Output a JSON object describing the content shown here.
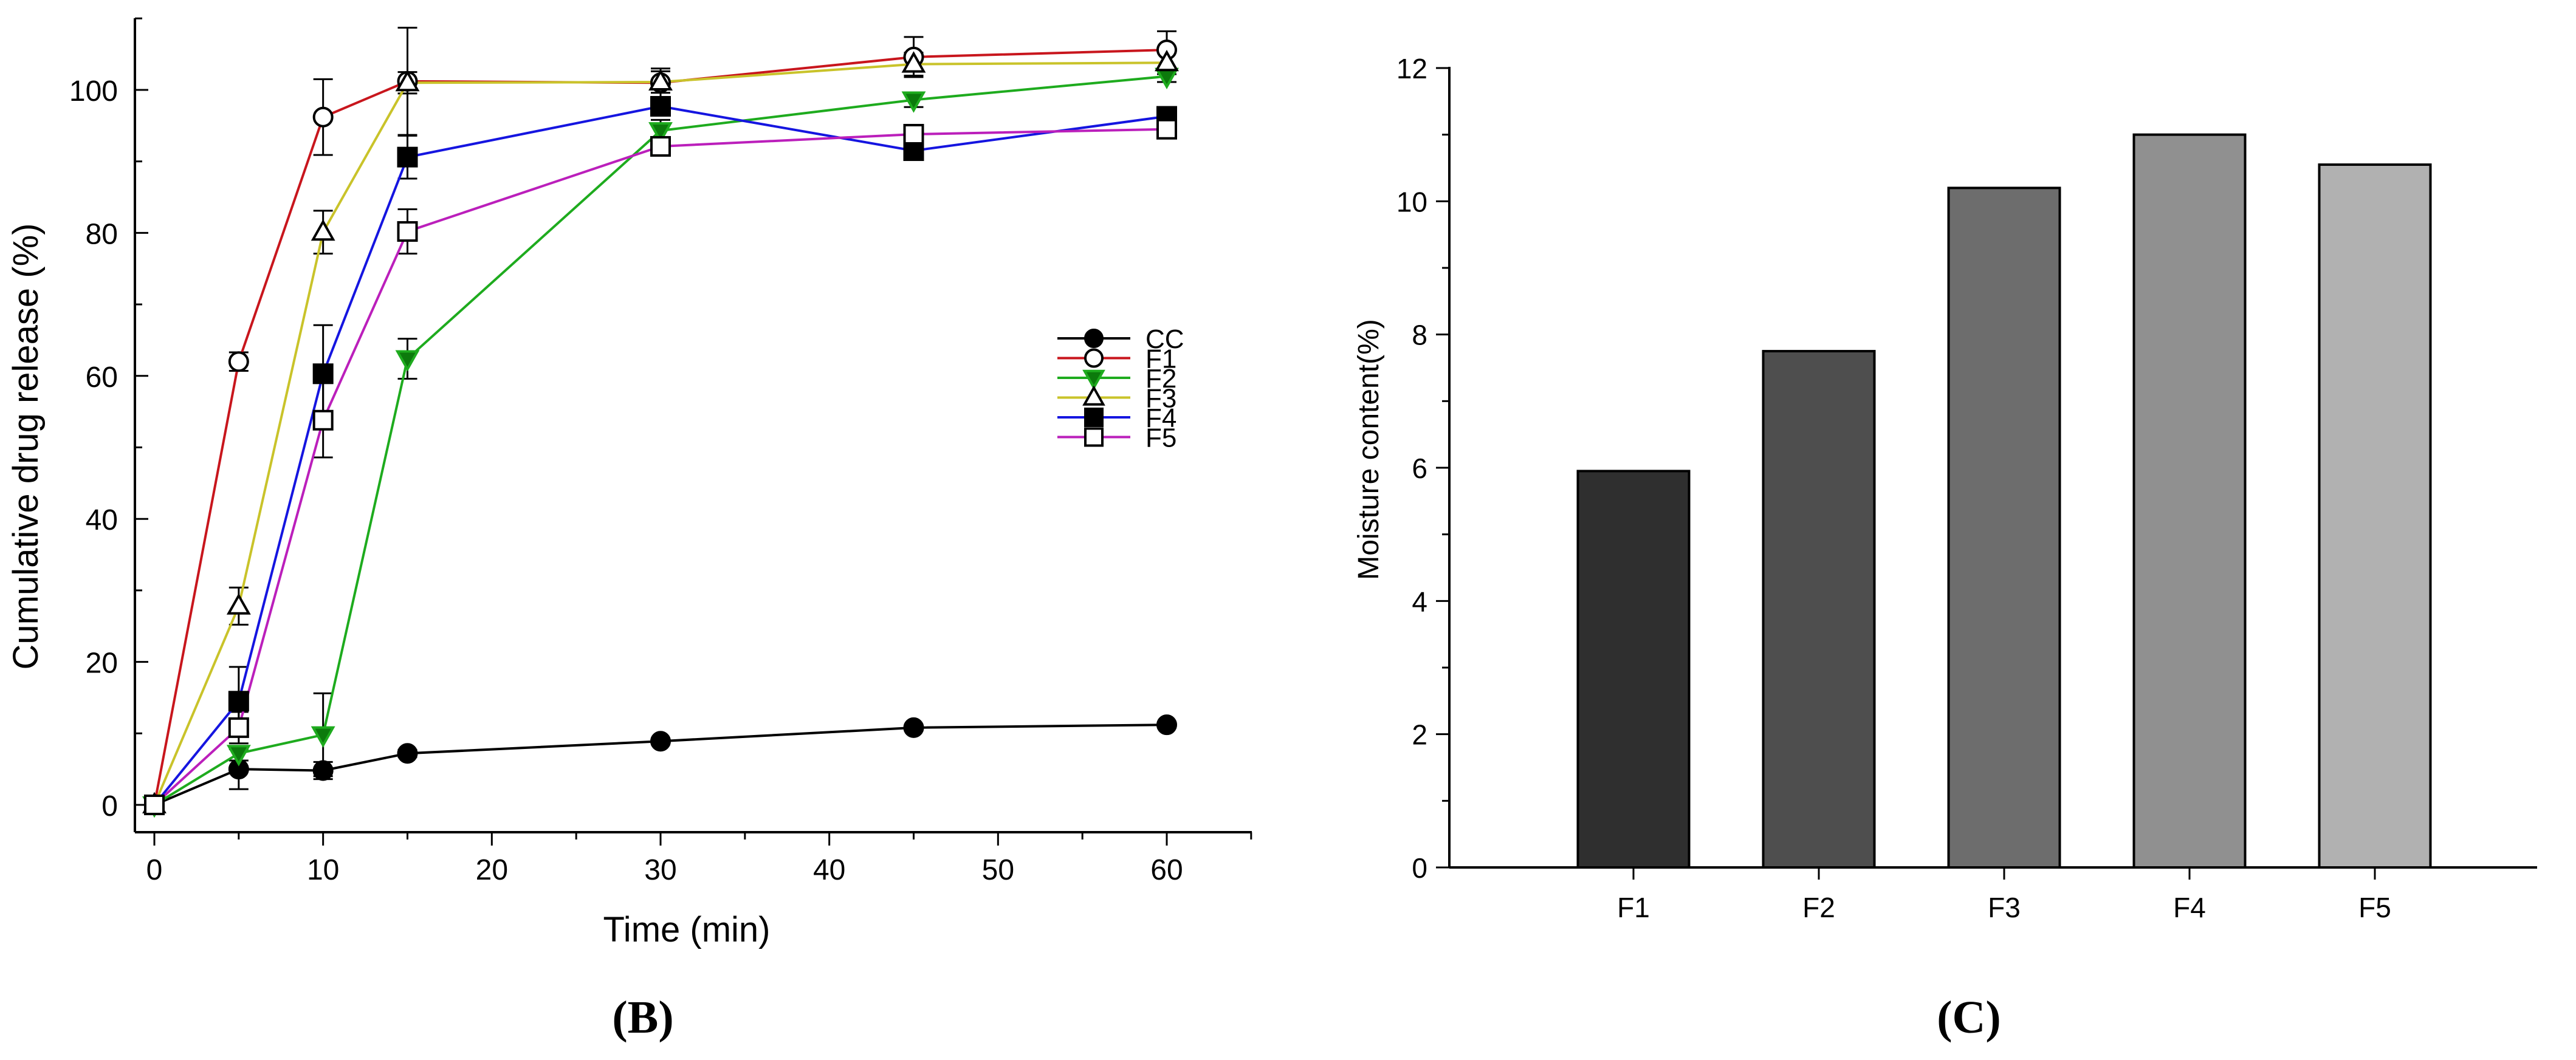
{
  "chart_data": [
    {
      "type": "line",
      "panel_label": "(B)",
      "title": "",
      "xlabel": "Time (min)",
      "ylabel": "Cumulative drug release (%)",
      "xlim": [
        0,
        65
      ],
      "ylim": [
        0,
        110
      ],
      "xticks": [
        "0",
        "10",
        "20",
        "30",
        "40",
        "50",
        "60"
      ],
      "yticks": [
        "0",
        "20",
        "40",
        "60",
        "80",
        "100"
      ],
      "x": [
        0,
        5,
        10,
        15,
        30,
        45,
        60
      ],
      "legend_position": "center-right",
      "series": [
        {
          "name": "CC",
          "color": "#000000",
          "marker": "circle",
          "filled": true,
          "values": [
            0,
            5,
            4.8,
            7.2,
            8.9,
            10.8,
            11.2
          ],
          "errors": [
            0,
            2.8,
            1.2,
            0.5,
            0.4,
            0.4,
            0.4
          ]
        },
        {
          "name": "F1",
          "color": "#c8161d",
          "marker": "circle",
          "filled": false,
          "values": [
            0,
            62,
            96.2,
            101.2,
            101,
            104.6,
            105.6
          ],
          "errors": [
            0,
            1.3,
            5.3,
            7.5,
            2.0,
            2.8,
            2.6
          ]
        },
        {
          "name": "F2",
          "color": "#1eab1e",
          "marker": "triangle-down",
          "filled": true,
          "fill": "#0c7a0c",
          "values": [
            0,
            7.2,
            9.8,
            62.4,
            94.3,
            98.6,
            101.9
          ],
          "errors": [
            0,
            1.0,
            5.8,
            2.8,
            1.5,
            1.0,
            0.8
          ]
        },
        {
          "name": "F3",
          "color": "#c9c32a",
          "marker": "triangle-up",
          "filled": false,
          "values": [
            0,
            27.8,
            80.1,
            101,
            101.1,
            103.6,
            103.8
          ],
          "errors": [
            0,
            2.6,
            3.0,
            1.5,
            1.5,
            1.6,
            1.6
          ]
        },
        {
          "name": "F4",
          "color": "#1515e0",
          "marker": "square",
          "filled": true,
          "values": [
            0,
            14.5,
            60.3,
            90.6,
            97.7,
            91.5,
            96.3
          ],
          "errors": [
            0,
            4.8,
            6.8,
            3.0,
            0.8,
            1.2,
            0.8
          ]
        },
        {
          "name": "F5",
          "color": "#bb1fbb",
          "marker": "square",
          "filled": false,
          "values": [
            0,
            10.8,
            53.8,
            80.2,
            92.1,
            93.8,
            94.5
          ],
          "errors": [
            0,
            2.2,
            5.2,
            3.1,
            1.0,
            0.8,
            1.2
          ]
        }
      ]
    },
    {
      "type": "bar",
      "panel_label": "(C)",
      "title": "",
      "xlabel": "",
      "ylabel": "Moisture content(%)",
      "ylim": [
        0,
        12
      ],
      "yticks": [
        "0",
        "2",
        "4",
        "6",
        "8",
        "10",
        "12"
      ],
      "categories": [
        "F1",
        "F2",
        "F3",
        "F4",
        "F5"
      ],
      "values": [
        5.95,
        7.75,
        10.2,
        11.0,
        10.55
      ],
      "bar_colors": [
        "#2f2f2f",
        "#4e4e4e",
        "#6d6d6d",
        "#909090",
        "#b1b1b1"
      ]
    }
  ]
}
